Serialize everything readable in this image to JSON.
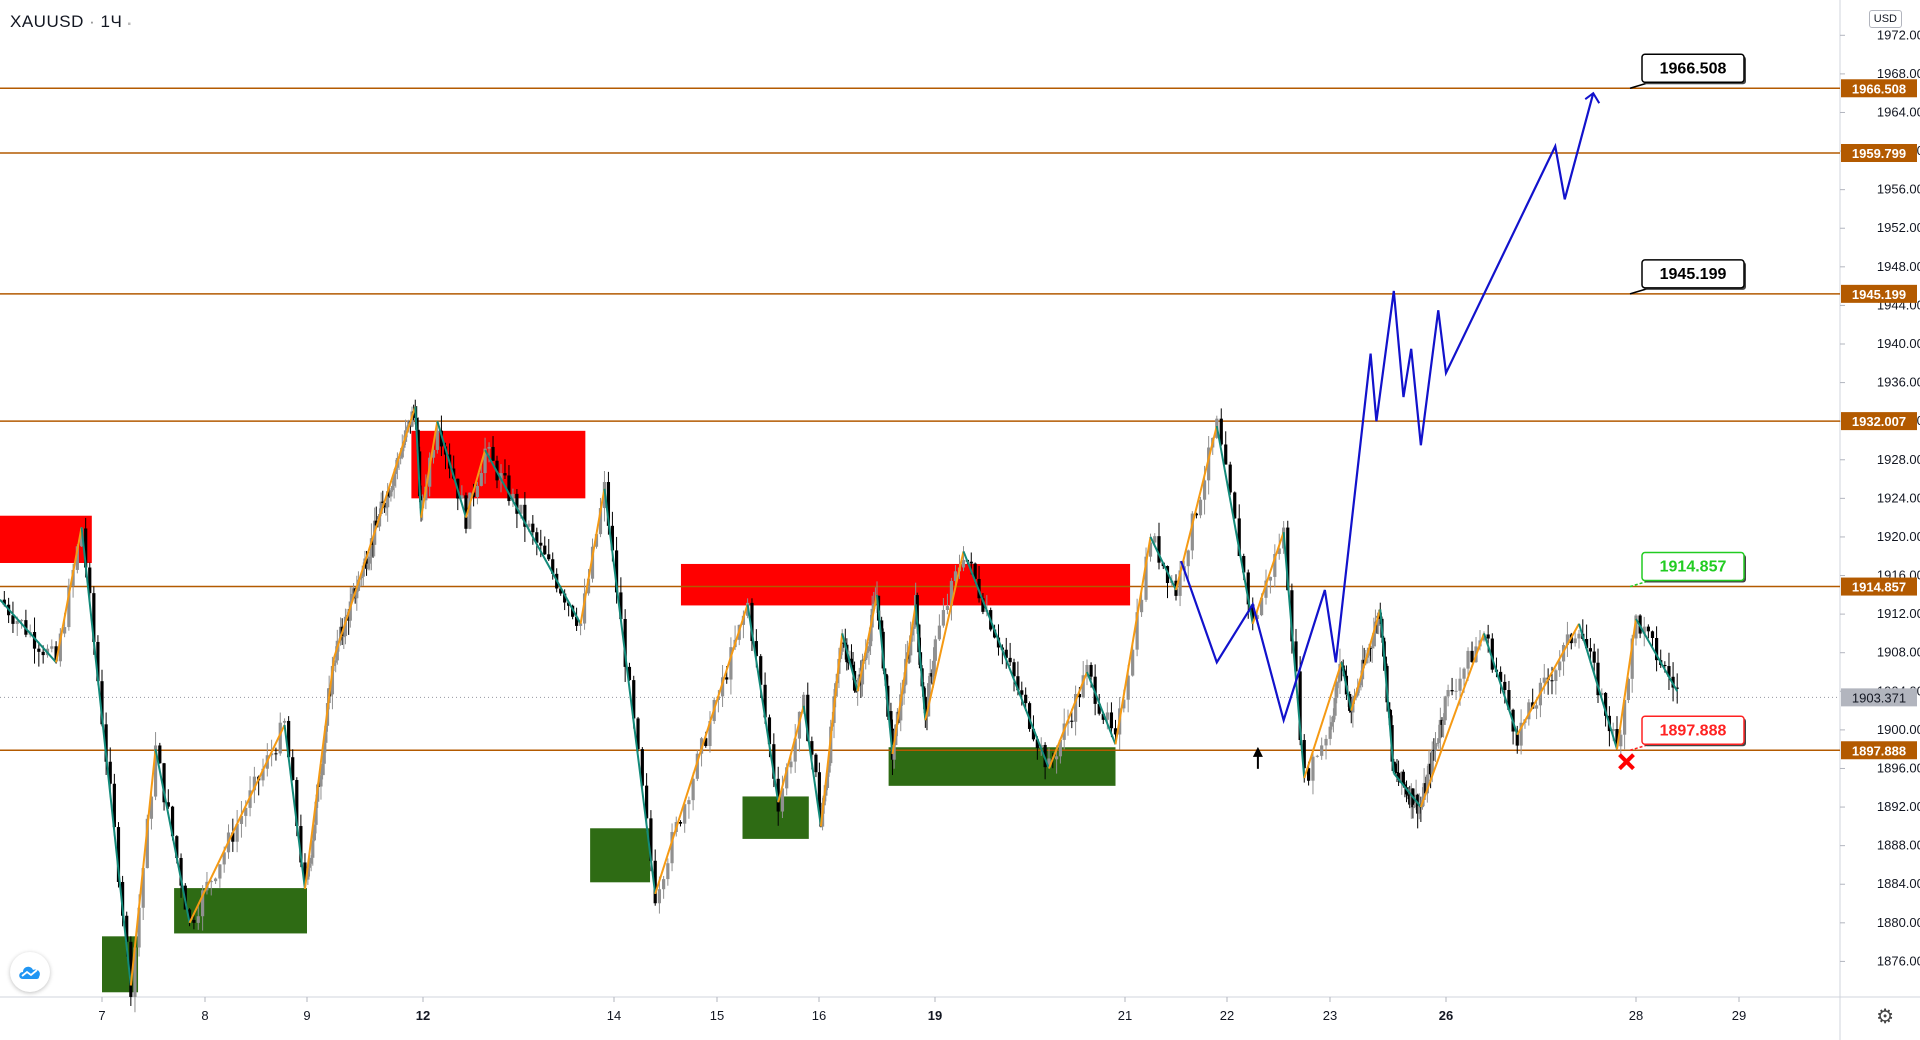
{
  "header": {
    "symbol": "XAUUSD",
    "interval": "1Ч",
    "currency": "USD"
  },
  "icons": {
    "logo": "tradingview-cloud-icon",
    "settings": "gear-icon",
    "up_arrow": "arrow-up-icon",
    "cross": "x-mark-icon"
  },
  "colors": {
    "level_line": "#b35a00",
    "level_badge": "#b35a00",
    "current_badge": "#b2b5be",
    "supply_zone": "#ff0000",
    "demand_zone": "#2e6b14",
    "zigzag_up": "#f59a14",
    "zigzag_down": "#138a7a",
    "projection": "#1212cc",
    "candle_up": "#909090",
    "candle_down": "#000000"
  },
  "chart_data": {
    "type": "candlestick",
    "symbol": "XAUUSD",
    "y_axis": {
      "min": 1872,
      "max": 1974,
      "ticks": [
        1876,
        1880,
        1884,
        1888,
        1892,
        1896,
        1900,
        1904,
        1908,
        1912,
        1916,
        1920,
        1924,
        1928,
        1932,
        1936,
        1940,
        1944,
        1948,
        1952,
        1956,
        1960,
        1964,
        1968,
        1972
      ],
      "tick_labels": [
        "1876.000",
        "1880.000",
        "1884.000",
        "1888.000",
        "1892.000",
        "1896.000",
        "1900.000",
        "1904.000",
        "1908.000",
        "1912.000",
        "1916.000",
        "1920.000",
        "1924.000",
        "1928.000",
        "1932.000",
        "1936.000",
        "1940.000",
        "1944.000",
        "1948.000",
        "1952.000",
        "1956.000",
        "1960.000",
        "1964.000",
        "1968.000",
        "1972.000"
      ]
    },
    "x_axis": {
      "ticks": [
        {
          "label": "7",
          "day": 7,
          "bold": false
        },
        {
          "label": "8",
          "day": 8,
          "bold": false
        },
        {
          "label": "9",
          "day": 9,
          "bold": false
        },
        {
          "label": "12",
          "day": 12,
          "bold": true
        },
        {
          "label": "14",
          "day": 14,
          "bold": false
        },
        {
          "label": "15",
          "day": 15,
          "bold": false
        },
        {
          "label": "16",
          "day": 16,
          "bold": false
        },
        {
          "label": "19",
          "day": 19,
          "bold": true
        },
        {
          "label": "21",
          "day": 21,
          "bold": false
        },
        {
          "label": "22",
          "day": 22,
          "bold": false
        },
        {
          "label": "23",
          "day": 23,
          "bold": false
        },
        {
          "label": "26",
          "day": 26,
          "bold": true
        },
        {
          "label": "28",
          "day": 28,
          "bold": false
        },
        {
          "label": "29",
          "day": 29,
          "bold": false
        }
      ]
    },
    "levels": [
      {
        "value": 1966.508,
        "label": "1966.508"
      },
      {
        "value": 1959.799,
        "label": "1959.799"
      },
      {
        "value": 1945.199,
        "label": "1945.199"
      },
      {
        "value": 1932.007,
        "label": "1932.007"
      },
      {
        "value": 1914.857,
        "label": "1914.857"
      },
      {
        "value": 1897.888,
        "label": "1897.888"
      }
    ],
    "current_price": {
      "value": 1903.371,
      "label": "1903.371"
    },
    "callouts": [
      {
        "value": 1966.508,
        "label": "1966.508",
        "style": "black",
        "day": 28
      },
      {
        "value": 1945.199,
        "label": "1945.199",
        "style": "black",
        "day": 28
      },
      {
        "value": 1914.857,
        "label": "1914.857",
        "style": "green",
        "day": 28
      },
      {
        "value": 1897.888,
        "label": "1897.888",
        "style": "red",
        "day": 28
      }
    ],
    "supply_zones": [
      {
        "day_from": 6.0,
        "day_to": 6.9,
        "high": 1922.2,
        "low": 1917.3
      },
      {
        "day_from": 11.7,
        "day_to": 13.7,
        "high": 1931.0,
        "low": 1924.0
      },
      {
        "day_from": 14.65,
        "day_to": 21.05,
        "high": 1917.2,
        "low": 1912.9
      }
    ],
    "demand_zones": [
      {
        "day_from": 7.0,
        "day_to": 7.35,
        "high": 1878.6,
        "low": 1872.8
      },
      {
        "day_from": 7.7,
        "day_to": 9.0,
        "high": 1883.6,
        "low": 1878.9
      },
      {
        "day_from": 13.75,
        "day_to": 14.35,
        "high": 1889.8,
        "low": 1884.2
      },
      {
        "day_from": 15.25,
        "day_to": 15.9,
        "high": 1893.1,
        "low": 1888.7
      },
      {
        "day_from": 17.8,
        "day_to": 20.9,
        "high": 1898.2,
        "low": 1894.2
      }
    ],
    "zigzag": [
      {
        "day": 6.0,
        "price": 1913.5
      },
      {
        "day": 6.55,
        "price": 1907.0
      },
      {
        "day": 6.8,
        "price": 1921.0
      },
      {
        "day": 7.28,
        "price": 1873.5
      },
      {
        "day": 7.52,
        "price": 1898.0
      },
      {
        "day": 7.85,
        "price": 1880.0
      },
      {
        "day": 8.78,
        "price": 1900.5
      },
      {
        "day": 8.98,
        "price": 1883.5
      },
      {
        "day": 9.7,
        "price": 1907.5
      },
      {
        "day": 11.8,
        "price": 1933.5
      },
      {
        "day": 11.95,
        "price": 1922.0
      },
      {
        "day": 12.15,
        "price": 1932.0
      },
      {
        "day": 12.45,
        "price": 1922.0
      },
      {
        "day": 12.65,
        "price": 1929.0
      },
      {
        "day": 13.65,
        "price": 1911.0
      },
      {
        "day": 13.9,
        "price": 1925.0
      },
      {
        "day": 14.4,
        "price": 1883.0
      },
      {
        "day": 15.3,
        "price": 1913.0
      },
      {
        "day": 15.6,
        "price": 1892.5
      },
      {
        "day": 15.85,
        "price": 1902.5
      },
      {
        "day": 16.05,
        "price": 1890.0
      },
      {
        "day": 16.6,
        "price": 1910.0
      },
      {
        "day": 17.0,
        "price": 1904.0
      },
      {
        "day": 17.5,
        "price": 1914.0
      },
      {
        "day": 17.9,
        "price": 1897.5
      },
      {
        "day": 18.5,
        "price": 1913.0
      },
      {
        "day": 18.75,
        "price": 1901.0
      },
      {
        "day": 19.3,
        "price": 1918.5
      },
      {
        "day": 20.2,
        "price": 1896.0
      },
      {
        "day": 20.6,
        "price": 1906.0
      },
      {
        "day": 20.9,
        "price": 1898.5
      },
      {
        "day": 21.25,
        "price": 1920.0
      },
      {
        "day": 21.5,
        "price": 1914.5
      },
      {
        "day": 21.9,
        "price": 1931.5
      },
      {
        "day": 22.25,
        "price": 1911.0
      },
      {
        "day": 22.55,
        "price": 1920.5
      },
      {
        "day": 22.75,
        "price": 1895.0
      },
      {
        "day": 23.3,
        "price": 1907.0
      },
      {
        "day": 23.55,
        "price": 1902.0
      },
      {
        "day": 24.3,
        "price": 1912.5
      },
      {
        "day": 24.65,
        "price": 1895.5
      },
      {
        "day": 25.35,
        "price": 1892.0
      },
      {
        "day": 26.4,
        "price": 1910.0
      },
      {
        "day": 26.75,
        "price": 1899.5
      },
      {
        "day": 27.4,
        "price": 1911.0
      },
      {
        "day": 27.8,
        "price": 1898.0
      },
      {
        "day": 28.0,
        "price": 1911.5
      },
      {
        "day": 28.4,
        "price": 1904.0
      }
    ],
    "projection": [
      {
        "day": 21.55,
        "price": 1917.5
      },
      {
        "day": 21.9,
        "price": 1907.0
      },
      {
        "day": 22.25,
        "price": 1913.0
      },
      {
        "day": 22.55,
        "price": 1901.0
      },
      {
        "day": 22.95,
        "price": 1914.5
      },
      {
        "day": 23.15,
        "price": 1907.0
      },
      {
        "day": 24.05,
        "price": 1939.0
      },
      {
        "day": 24.2,
        "price": 1932.0
      },
      {
        "day": 24.65,
        "price": 1945.5
      },
      {
        "day": 24.9,
        "price": 1934.5
      },
      {
        "day": 25.1,
        "price": 1939.5
      },
      {
        "day": 25.35,
        "price": 1929.5
      },
      {
        "day": 25.8,
        "price": 1943.5
      },
      {
        "day": 26.0,
        "price": 1937.0
      },
      {
        "day": 27.15,
        "price": 1960.5
      },
      {
        "day": 27.25,
        "price": 1955.0
      },
      {
        "day": 27.55,
        "price": 1966.0
      }
    ],
    "markers": [
      {
        "type": "arrow-up",
        "day": 22.3,
        "price": 1897.0
      },
      {
        "type": "cross",
        "day": 27.9,
        "price": 1896.7
      }
    ],
    "candles_summary": {
      "first_day": 6.0,
      "last_day": 28.55,
      "close": 1903.371
    }
  }
}
